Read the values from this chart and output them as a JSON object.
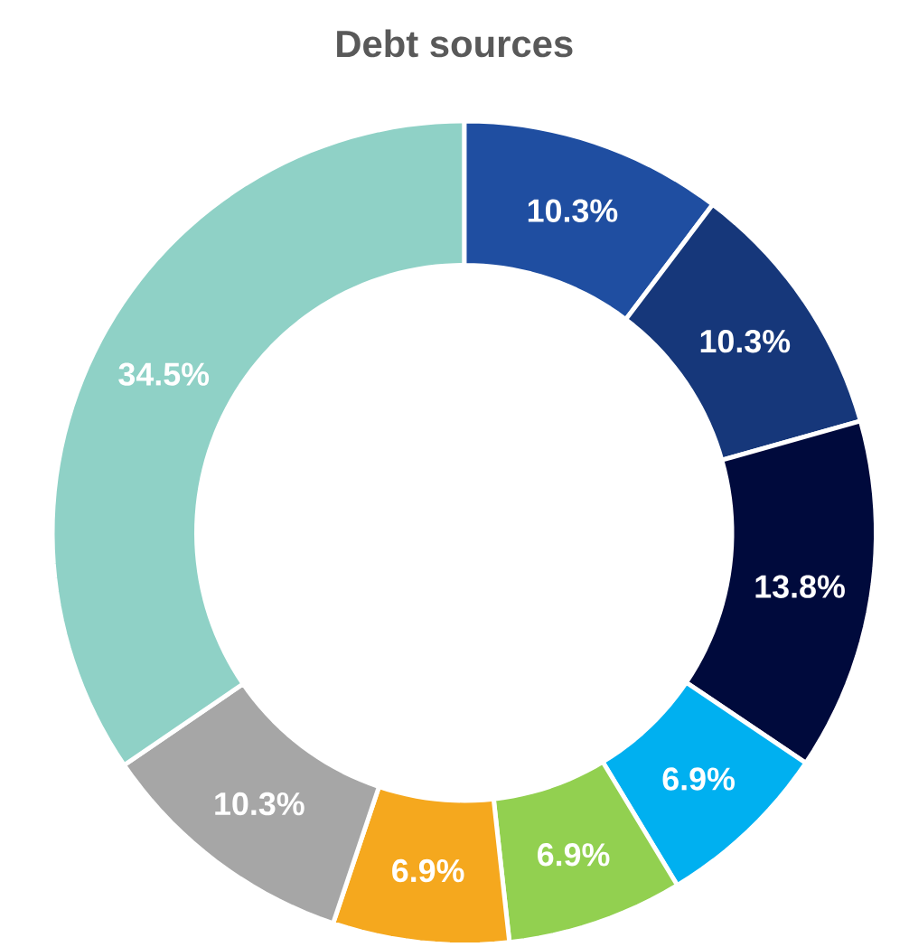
{
  "chart_data": {
    "type": "donut",
    "title": "Debt sources",
    "categories": [
      null,
      null,
      null,
      null,
      null,
      null,
      null,
      null
    ],
    "values": [
      10.3,
      10.3,
      13.8,
      6.9,
      6.9,
      6.9,
      10.3,
      34.5
    ],
    "value_labels": [
      "10.3%",
      "10.3%",
      "13.8%",
      "6.9%",
      "6.9%",
      "6.9%",
      "10.3%",
      "34.5%"
    ],
    "colors": [
      "#1f4ea1",
      "#16377a",
      "#000a3c",
      "#00b0f0",
      "#92d050",
      "#f5a81e",
      "#a6a6a6",
      "#8fd1c6"
    ]
  }
}
